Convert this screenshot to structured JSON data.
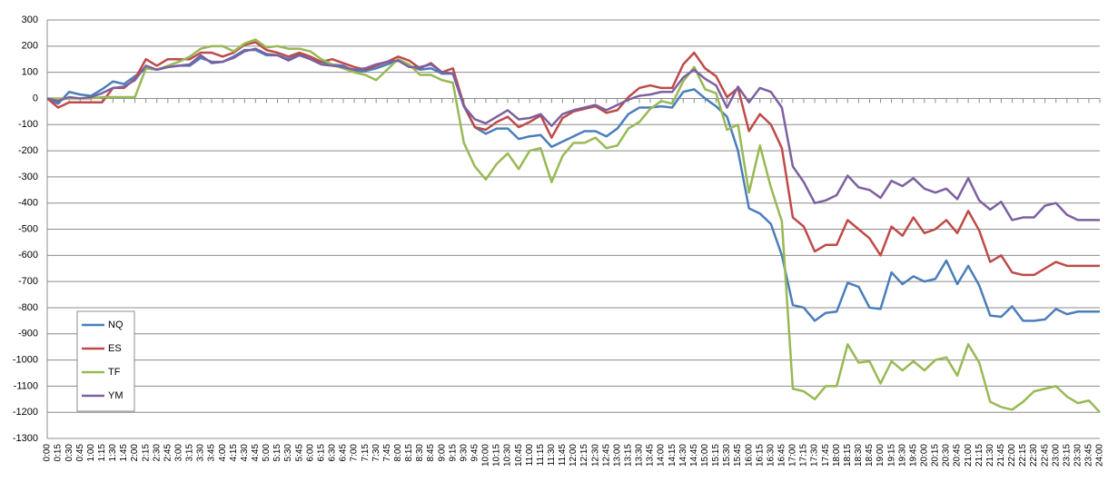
{
  "chart_data": {
    "type": "line",
    "categories": [
      "0:00",
      "0:15",
      "0:30",
      "0:45",
      "1:00",
      "1:15",
      "1:30",
      "1:45",
      "2:00",
      "2:15",
      "2:30",
      "2:45",
      "3:00",
      "3:15",
      "3:30",
      "3:45",
      "4:00",
      "4:15",
      "4:30",
      "4:45",
      "5:00",
      "5:15",
      "5:30",
      "5:45",
      "6:00",
      "6:15",
      "6:30",
      "6:45",
      "7:00",
      "7:15",
      "7:30",
      "7:45",
      "8:00",
      "8:15",
      "8:30",
      "8:45",
      "9:00",
      "9:15",
      "9:30",
      "9:45",
      "10:00",
      "10:15",
      "10:30",
      "10:45",
      "11:00",
      "11:15",
      "11:30",
      "11:45",
      "12:00",
      "12:15",
      "12:30",
      "12:45",
      "13:00",
      "13:15",
      "13:30",
      "13:45",
      "14:00",
      "14:15",
      "14:30",
      "14:45",
      "15:00",
      "15:15",
      "15:30",
      "15:45",
      "16:00",
      "16:15",
      "16:30",
      "16:45",
      "17:00",
      "17:15",
      "17:30",
      "17:45",
      "18:00",
      "18:15",
      "18:30",
      "18:45",
      "19:00",
      "19:15",
      "19:30",
      "19:45",
      "20:00",
      "20:15",
      "20:30",
      "20:45",
      "21:00",
      "21:15",
      "21:30",
      "21:45",
      "22:00",
      "22:15",
      "22:30",
      "22:45",
      "23:00",
      "23:15",
      "23:30",
      "23:45",
      "24:00"
    ],
    "series": [
      {
        "name": "NQ",
        "color": "#4a7ebb",
        "values": [
          0,
          -20,
          25,
          15,
          10,
          35,
          65,
          55,
          85,
          115,
          110,
          120,
          125,
          125,
          155,
          140,
          140,
          160,
          185,
          185,
          165,
          165,
          150,
          170,
          150,
          140,
          130,
          125,
          105,
          105,
          115,
          130,
          145,
          125,
          110,
          115,
          95,
          95,
          -30,
          -110,
          -135,
          -115,
          -115,
          -155,
          -145,
          -140,
          -185,
          -165,
          -145,
          -125,
          -125,
          -145,
          -115,
          -60,
          -35,
          -35,
          -30,
          -35,
          25,
          35,
          0,
          -30,
          -70,
          -200,
          -420,
          -440,
          -480,
          -600,
          -790,
          -800,
          -850,
          -820,
          -815,
          -705,
          -720,
          -800,
          -805,
          -665,
          -710,
          -680,
          -700,
          -690,
          -620,
          -710,
          -640,
          -715,
          -830,
          -835,
          -795,
          -850,
          -850,
          -845,
          -805,
          -825,
          -815,
          -815,
          -815
        ]
      },
      {
        "name": "ES",
        "color": "#be4b48",
        "values": [
          0,
          -35,
          -15,
          -15,
          -15,
          -15,
          40,
          40,
          75,
          150,
          125,
          150,
          150,
          150,
          175,
          175,
          160,
          175,
          205,
          215,
          185,
          175,
          160,
          175,
          160,
          140,
          150,
          135,
          120,
          110,
          125,
          140,
          160,
          145,
          115,
          135,
          100,
          115,
          -25,
          -110,
          -120,
          -90,
          -70,
          -110,
          -90,
          -65,
          -150,
          -75,
          -50,
          -40,
          -30,
          -55,
          -45,
          5,
          40,
          50,
          40,
          40,
          130,
          175,
          115,
          85,
          5,
          40,
          -125,
          -60,
          -100,
          -190,
          -455,
          -490,
          -585,
          -560,
          -560,
          -465,
          -500,
          -535,
          -600,
          -490,
          -525,
          -455,
          -515,
          -500,
          -465,
          -515,
          -430,
          -505,
          -625,
          -600,
          -665,
          -675,
          -675,
          -650,
          -625,
          -640,
          -640,
          -640,
          -640
        ]
      },
      {
        "name": "TF",
        "color": "#98b954",
        "values": [
          0,
          0,
          0,
          0,
          0,
          5,
          5,
          5,
          5,
          115,
          110,
          125,
          140,
          160,
          190,
          200,
          200,
          180,
          210,
          225,
          195,
          200,
          190,
          190,
          180,
          150,
          130,
          115,
          100,
          90,
          70,
          110,
          150,
          130,
          90,
          90,
          70,
          60,
          -170,
          -260,
          -310,
          -250,
          -210,
          -270,
          -200,
          -190,
          -320,
          -220,
          -170,
          -170,
          -150,
          -190,
          -180,
          -115,
          -90,
          -40,
          -10,
          -20,
          65,
          120,
          35,
          20,
          -120,
          -100,
          -360,
          -180,
          -340,
          -470,
          -1110,
          -1120,
          -1150,
          -1100,
          -1100,
          -940,
          -1010,
          -1005,
          -1090,
          -1005,
          -1040,
          -1005,
          -1040,
          -1000,
          -990,
          -1060,
          -940,
          -1010,
          -1160,
          -1180,
          -1190,
          -1160,
          -1120,
          -1110,
          -1100,
          -1140,
          -1165,
          -1155,
          -1200
        ]
      },
      {
        "name": "YM",
        "color": "#7d60a0",
        "values": [
          0,
          -10,
          5,
          0,
          5,
          20,
          40,
          45,
          70,
          125,
          110,
          120,
          125,
          130,
          165,
          135,
          140,
          155,
          180,
          190,
          170,
          165,
          145,
          165,
          150,
          130,
          125,
          120,
          110,
          115,
          130,
          140,
          145,
          120,
          120,
          130,
          100,
          95,
          -30,
          -80,
          -95,
          -70,
          -45,
          -80,
          -75,
          -60,
          -105,
          -60,
          -45,
          -35,
          -25,
          -45,
          -25,
          -5,
          10,
          15,
          25,
          25,
          80,
          110,
          75,
          50,
          -35,
          45,
          -15,
          40,
          25,
          -35,
          -260,
          -320,
          -400,
          -390,
          -370,
          -295,
          -340,
          -350,
          -380,
          -315,
          -335,
          -305,
          -345,
          -360,
          -345,
          -385,
          -305,
          -390,
          -425,
          -395,
          -465,
          -455,
          -455,
          -410,
          -400,
          -445,
          -465,
          -465,
          -465
        ]
      }
    ],
    "ylim": [
      -1300,
      300
    ],
    "yticks": [
      -1300,
      -1200,
      -1100,
      -1000,
      -900,
      -800,
      -700,
      -600,
      -500,
      -400,
      -300,
      -200,
      -100,
      0,
      100,
      200,
      300
    ],
    "grid": true,
    "legend": "lower left"
  }
}
